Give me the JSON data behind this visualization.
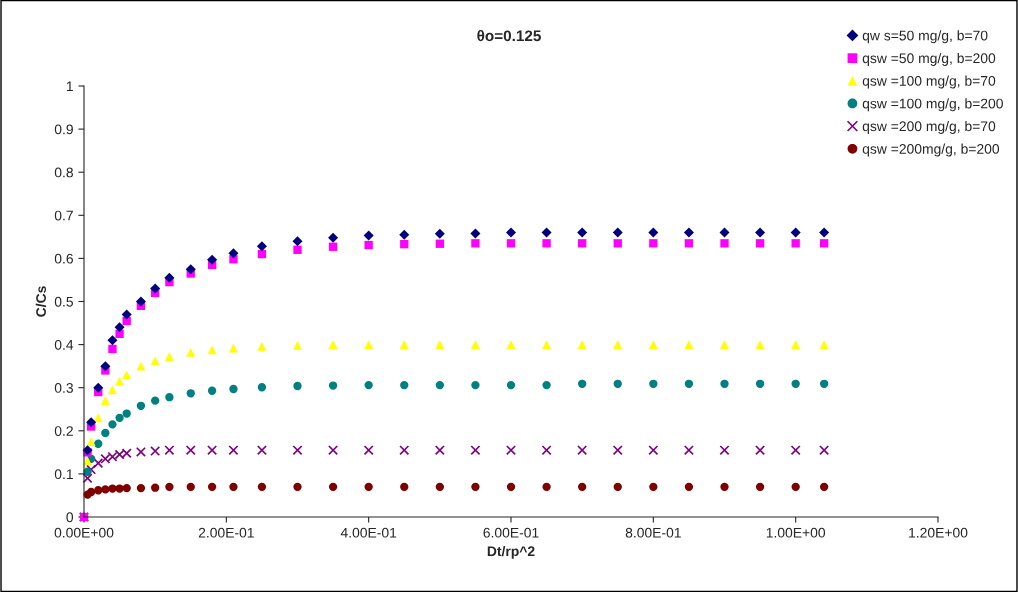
{
  "chart_data": {
    "type": "scatter",
    "title": "θo=0.125",
    "xlabel": "Dt/rp^2",
    "ylabel": "C/Cs",
    "x": [
      0,
      0.005,
      0.01,
      0.02,
      0.03,
      0.04,
      0.05,
      0.06,
      0.08,
      0.1,
      0.12,
      0.15,
      0.18,
      0.21,
      0.25,
      0.3,
      0.35,
      0.4,
      0.45,
      0.5,
      0.55,
      0.6,
      0.65,
      0.7,
      0.75,
      0.8,
      0.85,
      0.9,
      0.95,
      1.0,
      1.04
    ],
    "series": [
      {
        "name": "qw s=50 mg/g, b=70",
        "color": "#000080",
        "marker": "diamond",
        "values": [
          null,
          0.155,
          0.22,
          0.3,
          0.35,
          0.41,
          0.44,
          0.47,
          0.5,
          0.53,
          0.555,
          0.575,
          0.597,
          0.612,
          0.628,
          0.64,
          0.648,
          0.653,
          0.655,
          0.657,
          0.658,
          0.66,
          0.66,
          0.66,
          0.66,
          0.66,
          0.66,
          0.66,
          0.66,
          0.66,
          0.66
        ]
      },
      {
        "name": "qsw =50 mg/g, b=200",
        "color": "#ff00ff",
        "marker": "square",
        "values": [
          0,
          0.15,
          0.21,
          0.29,
          0.34,
          0.39,
          0.425,
          0.455,
          0.49,
          0.52,
          0.545,
          0.565,
          0.585,
          0.598,
          0.61,
          0.62,
          0.627,
          0.631,
          0.633,
          0.634,
          0.635,
          0.635,
          0.635,
          0.635,
          0.635,
          0.635,
          0.635,
          0.635,
          0.635,
          0.635,
          0.635
        ]
      },
      {
        "name": "qsw =100 mg/g, b=70",
        "color": "#ffff00",
        "marker": "triangle",
        "values": [
          null,
          0.13,
          0.175,
          0.23,
          0.27,
          0.295,
          0.315,
          0.33,
          0.35,
          0.362,
          0.372,
          0.382,
          0.388,
          0.392,
          0.396,
          0.398,
          0.4,
          0.4,
          0.4,
          0.4,
          0.4,
          0.4,
          0.4,
          0.4,
          0.4,
          0.4,
          0.4,
          0.4,
          0.4,
          0.4,
          0.4
        ]
      },
      {
        "name": "qsw =100 mg/g, b=200",
        "color": "#008080",
        "marker": "circle",
        "values": [
          0,
          0.105,
          0.135,
          0.17,
          0.195,
          0.215,
          0.23,
          0.24,
          0.258,
          0.27,
          0.278,
          0.287,
          0.293,
          0.297,
          0.301,
          0.304,
          0.305,
          0.306,
          0.306,
          0.306,
          0.306,
          0.306,
          0.306,
          0.309,
          0.309,
          0.309,
          0.309,
          0.309,
          0.309,
          0.309,
          0.309
        ]
      },
      {
        "name": "qsw =200 mg/g, b=70",
        "color": "#800080",
        "marker": "cross",
        "values": [
          0,
          0.09,
          0.11,
          0.125,
          0.135,
          0.14,
          0.145,
          0.148,
          0.151,
          0.153,
          0.155,
          0.155,
          0.155,
          0.155,
          0.155,
          0.155,
          0.155,
          0.155,
          0.155,
          0.155,
          0.155,
          0.155,
          0.155,
          0.155,
          0.155,
          0.155,
          0.155,
          0.155,
          0.155,
          0.155,
          0.155
        ]
      },
      {
        "name": "qsw =200mg/g, b=200",
        "color": "#800000",
        "marker": "circle",
        "values": [
          0,
          0.052,
          0.058,
          0.062,
          0.064,
          0.066,
          0.066,
          0.067,
          0.067,
          0.068,
          0.07,
          0.07,
          0.07,
          0.07,
          0.07,
          0.07,
          0.07,
          0.07,
          0.07,
          0.07,
          0.07,
          0.07,
          0.07,
          0.07,
          0.07,
          0.07,
          0.07,
          0.07,
          0.07,
          0.07,
          0.07
        ]
      }
    ],
    "xlim": [
      0,
      1.2
    ],
    "xticks": [
      {
        "value": 0,
        "label": "0.00E+00"
      },
      {
        "value": 0.2,
        "label": "2.00E-01"
      },
      {
        "value": 0.4,
        "label": "4.00E-01"
      },
      {
        "value": 0.6,
        "label": "6.00E-01"
      },
      {
        "value": 0.8,
        "label": "8.00E-01"
      },
      {
        "value": 1.0,
        "label": "1.00E+00"
      },
      {
        "value": 1.2,
        "label": "1.20E+00"
      }
    ],
    "ylim": [
      0,
      1
    ],
    "yticks": [
      0,
      0.1,
      0.2,
      0.3,
      0.4,
      0.5,
      0.6,
      0.7,
      0.8,
      0.9,
      1
    ],
    "grid": false,
    "legend": "top right"
  }
}
